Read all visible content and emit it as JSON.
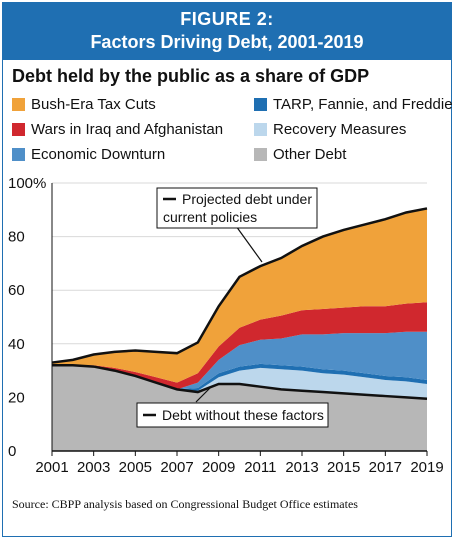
{
  "figure": {
    "label": "FIGURE 2:",
    "heading": "Factors Driving Debt, 2001-2019"
  },
  "source_note": "Source: CBPP analysis based on Congressional Budget Office estimates",
  "colors": {
    "banner": "#1f6fb2",
    "bush_tax_cuts": "#f0a23a",
    "wars": "#d0282e",
    "downturn": "#4f8fc8",
    "tarp": "#1f6fb2",
    "recovery": "#bcd7ec",
    "other_debt": "#b7b7b7"
  },
  "chart_data": {
    "type": "area",
    "title": "Debt held by the public as a share of GDP",
    "xlabel": "",
    "ylabel": "",
    "x": [
      2001,
      2002,
      2003,
      2004,
      2005,
      2006,
      2007,
      2008,
      2009,
      2010,
      2011,
      2012,
      2013,
      2014,
      2015,
      2016,
      2017,
      2018,
      2019
    ],
    "xticks": [
      "2001",
      "2003",
      "2005",
      "2007",
      "2009",
      "2011",
      "2013",
      "2015",
      "2017",
      "2019"
    ],
    "yticks": [
      "0",
      "20",
      "40",
      "60",
      "80",
      "100%"
    ],
    "ylim": [
      0,
      100
    ],
    "grid": true,
    "legend": [
      {
        "name": "Bush-Era Tax Cuts",
        "color_key": "bush_tax_cuts"
      },
      {
        "name": "TARP, Fannie, and Freddie",
        "color_key": "tarp"
      },
      {
        "name": "Wars in Iraq and Afghanistan",
        "color_key": "wars"
      },
      {
        "name": "Recovery Measures",
        "color_key": "recovery"
      },
      {
        "name": "Economic Downturn",
        "color_key": "downturn"
      },
      {
        "name": "Other Debt",
        "color_key": "other_debt"
      }
    ],
    "series": [
      {
        "name": "Other Debt",
        "color_key": "other_debt",
        "values": [
          32,
          32,
          31.5,
          30,
          28,
          25.5,
          23,
          22,
          25,
          25,
          24,
          23,
          22.5,
          22,
          21.5,
          21,
          20.5,
          20,
          19.5
        ]
      },
      {
        "name": "Recovery Measures",
        "color_key": "recovery",
        "values": [
          0,
          0,
          0,
          0,
          0,
          0,
          0,
          0.5,
          2.5,
          5,
          7,
          7.5,
          7.5,
          7,
          7,
          6.5,
          6,
          6,
          5.5
        ]
      },
      {
        "name": "TARP, Fannie, and Freddie",
        "color_key": "tarp",
        "values": [
          0,
          0,
          0,
          0,
          0,
          0,
          0,
          1,
          1.5,
          1.5,
          1.5,
          1.5,
          1.5,
          1.5,
          1.5,
          1.5,
          1.5,
          1.5,
          1.5
        ]
      },
      {
        "name": "Economic Downturn",
        "color_key": "downturn",
        "values": [
          0,
          0,
          0,
          0,
          0,
          0,
          0,
          2,
          5,
          8,
          9,
          10,
          12,
          13,
          14,
          15,
          16,
          17,
          18
        ]
      },
      {
        "name": "Wars in Iraq and Afghanistan",
        "color_key": "wars",
        "values": [
          0,
          0.2,
          0.5,
          1,
          1.5,
          2,
          2.5,
          3.5,
          5,
          6.5,
          7.5,
          8.5,
          9,
          9.5,
          9.5,
          10,
          10,
          10.5,
          11
        ]
      },
      {
        "name": "Bush-Era Tax Cuts",
        "color_key": "bush_tax_cuts",
        "values": [
          1,
          1.8,
          4,
          6,
          8,
          9.5,
          11,
          11.5,
          15,
          19,
          20,
          21.5,
          24,
          27,
          29,
          30.5,
          32.5,
          34,
          35
        ]
      }
    ],
    "projected_line_label": "Projected debt under current policies",
    "without_line_label": "Debt without these factors"
  }
}
